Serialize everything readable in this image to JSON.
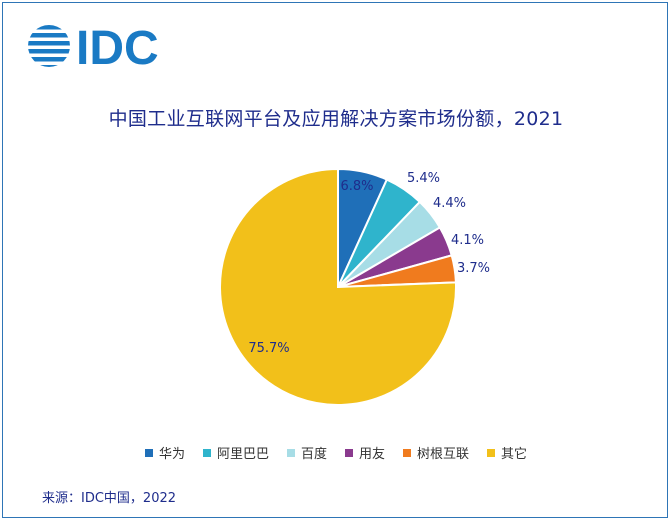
{
  "logo": {
    "text": "IDC",
    "color": "#1a7ac4"
  },
  "title": "中国工业互联网平台及应用解决方案市场份额，2021",
  "source": "来源：IDC中国，2022",
  "chart_data": {
    "type": "pie",
    "title": "中国工业互联网平台及应用解决方案市场份额，2021",
    "legend_position": "bottom",
    "start_angle_deg": 0,
    "direction": "clockwise",
    "slices": [
      {
        "name": "华为",
        "value": 6.8,
        "label": "6.8%",
        "color": "#1f6fb8"
      },
      {
        "name": "阿里巴巴",
        "value": 5.4,
        "label": "5.4%",
        "color": "#2fb4cc"
      },
      {
        "name": "百度",
        "value": 4.4,
        "label": "4.4%",
        "color": "#a7dde6"
      },
      {
        "name": "用友",
        "value": 4.1,
        "label": "4.1%",
        "color": "#8a3a8e"
      },
      {
        "name": "树根互联",
        "value": 3.7,
        "label": "3.7%",
        "color": "#f07b1e"
      },
      {
        "name": "其它",
        "value": 75.7,
        "label": "75.7%",
        "color": "#f2c01a"
      }
    ]
  }
}
